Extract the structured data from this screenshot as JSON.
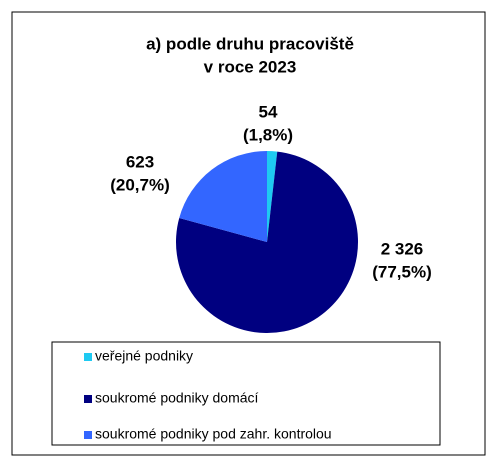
{
  "chart_data": {
    "type": "pie",
    "title": [
      "a) podle druhu pracoviště",
      "v roce 2023"
    ],
    "categories": [
      "veřejné podniky",
      "soukromé podniky domácí",
      "soukromé podniky pod zahr. kontrolou"
    ],
    "values": [
      54,
      2326,
      623
    ],
    "value_labels": [
      [
        "54",
        "(1,8%)"
      ],
      [
        "2 326",
        "(77,5%)"
      ],
      [
        "623",
        "(20,7%)"
      ]
    ],
    "colors": [
      "#1ecaf2",
      "#000080",
      "#3366ff"
    ]
  }
}
